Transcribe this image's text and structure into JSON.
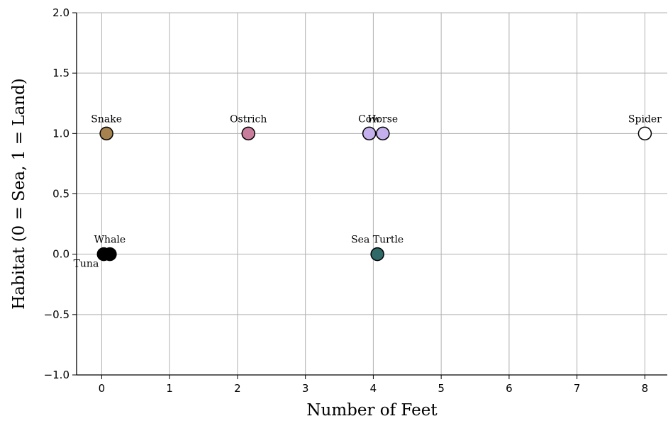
{
  "chart_data": {
    "type": "scatter",
    "xlabel": "Number of Feet",
    "ylabel": "Habitat (0 = Sea, 1 = Land)",
    "xlim": [
      -0.37,
      8.33
    ],
    "ylim": [
      -1.0,
      2.0
    ],
    "xticks": [
      0,
      1,
      2,
      3,
      4,
      5,
      6,
      7,
      8
    ],
    "yticks": [
      -1.0,
      -0.5,
      0.0,
      0.5,
      1.0,
      1.5,
      2.0
    ],
    "xtick_labels": [
      "0",
      "1",
      "2",
      "3",
      "4",
      "5",
      "6",
      "7",
      "8"
    ],
    "ytick_labels": [
      "−1.0",
      "−0.5",
      "0.0",
      "0.5",
      "1.0",
      "1.5",
      "2.0"
    ],
    "grid": true,
    "points": [
      {
        "label": "Tuna",
        "x": 0.03,
        "y": 0.0,
        "color": "#000000",
        "label_pos": "below-left"
      },
      {
        "label": "Whale",
        "x": 0.12,
        "y": 0.0,
        "color": "#000000",
        "label_pos": "above"
      },
      {
        "label": "Snake",
        "x": 0.07,
        "y": 1.0,
        "color": "#a6824f",
        "label_pos": "above"
      },
      {
        "label": "Ostrich",
        "x": 2.16,
        "y": 1.0,
        "color": "#c97d9c",
        "label_pos": "above"
      },
      {
        "label": "Cow",
        "x": 3.94,
        "y": 1.0,
        "color": "#c3b0ec",
        "label_pos": "above"
      },
      {
        "label": "Horse",
        "x": 4.14,
        "y": 1.0,
        "color": "#c3b0ec",
        "label_pos": "above"
      },
      {
        "label": "Sea Turtle",
        "x": 4.06,
        "y": 0.0,
        "color": "#2f6a68",
        "label_pos": "above"
      },
      {
        "label": "Spider",
        "x": 8.0,
        "y": 1.0,
        "color": "#ffffff",
        "label_pos": "above"
      }
    ]
  }
}
